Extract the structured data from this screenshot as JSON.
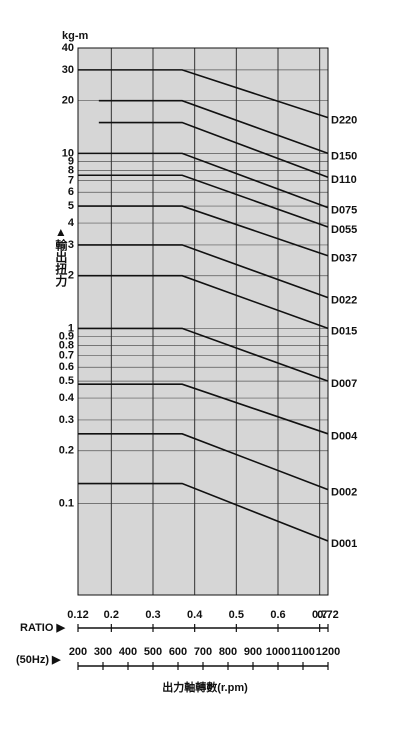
{
  "chart_data": {
    "type": "line",
    "y_unit": "kg-m",
    "y_label": "▲輸出扭力",
    "x_label": "RATIO ▶",
    "x2_label": "(50Hz) ▶",
    "x2_title": "出力軸轉數(r.pm)",
    "log_y": true,
    "grid": true,
    "color": "#111111",
    "xlim": [
      0.12,
      0.72
    ],
    "xticks": [
      0.12,
      0.2,
      0.3,
      0.4,
      0.5,
      0.6,
      0.7,
      0.72
    ],
    "x2lim": [
      200,
      1200
    ],
    "x2ticks": [
      200,
      300,
      400,
      500,
      600,
      700,
      800,
      900,
      1000,
      1100,
      1200
    ],
    "ylim": [
      0.03,
      40
    ],
    "yticks": [
      40,
      30,
      20,
      10,
      9,
      8,
      7,
      6,
      5,
      4,
      3,
      2,
      1,
      0.9,
      0.8,
      0.7,
      0.6,
      0.5,
      0.4,
      0.3,
      0.2,
      0.1
    ],
    "series": [
      {
        "name": "D220",
        "x": [
          0.12,
          0.37,
          0.72
        ],
        "values": [
          30,
          30,
          16
        ]
      },
      {
        "name": "D150",
        "x": [
          0.17,
          0.37,
          0.72
        ],
        "values": [
          20,
          20,
          10
        ]
      },
      {
        "name": "D110",
        "x": [
          0.17,
          0.37,
          0.72
        ],
        "values": [
          15,
          15,
          7.3
        ]
      },
      {
        "name": "D075",
        "x": [
          0.12,
          0.37,
          0.72
        ],
        "values": [
          10,
          10,
          4.9
        ]
      },
      {
        "name": "D055",
        "x": [
          0.12,
          0.37,
          0.72
        ],
        "values": [
          7.5,
          7.5,
          3.8
        ]
      },
      {
        "name": "D037",
        "x": [
          0.12,
          0.37,
          0.72
        ],
        "values": [
          5,
          5,
          2.6
        ]
      },
      {
        "name": "D022",
        "x": [
          0.12,
          0.37,
          0.72
        ],
        "values": [
          3,
          3,
          1.5
        ]
      },
      {
        "name": "D015",
        "x": [
          0.12,
          0.37,
          0.72
        ],
        "values": [
          2,
          2,
          1
        ]
      },
      {
        "name": "D007",
        "x": [
          0.12,
          0.37,
          0.72
        ],
        "values": [
          1,
          1,
          0.5
        ]
      },
      {
        "name": "D004",
        "x": [
          0.12,
          0.37,
          0.72
        ],
        "values": [
          0.48,
          0.48,
          0.25
        ]
      },
      {
        "name": "D002",
        "x": [
          0.12,
          0.37,
          0.72
        ],
        "values": [
          0.25,
          0.25,
          0.12
        ]
      },
      {
        "name": "D001",
        "x": [
          0.12,
          0.37,
          0.72
        ],
        "values": [
          0.13,
          0.13,
          0.061
        ]
      }
    ]
  }
}
